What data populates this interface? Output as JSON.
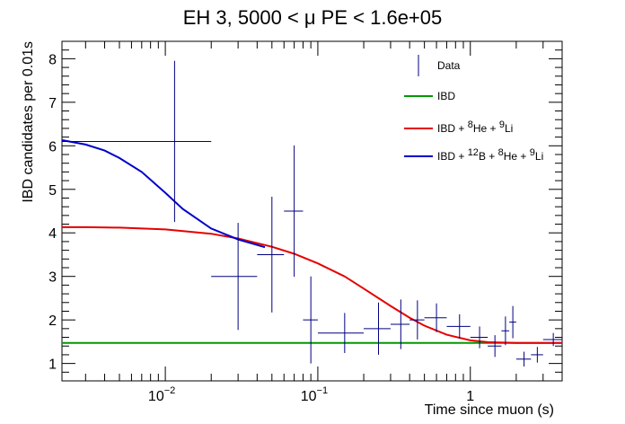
{
  "chart_data": {
    "type": "scatter",
    "title": "EH 3, 5000 < μ PE < 1.6e+05",
    "xlabel": "Time since muon (s)",
    "ylabel": "IBD candidates per 0.01s",
    "xscale": "log",
    "xlim": [
      0.0021,
      4.0
    ],
    "ylim": [
      0.6,
      8.4
    ],
    "grid": false,
    "legend_position": "top-right",
    "x_ticks": [
      {
        "base": "10",
        "exp": "−2",
        "value": 0.01
      },
      {
        "base": "10",
        "exp": "−1",
        "value": 0.1
      },
      {
        "base": "1",
        "exp": "",
        "value": 1
      }
    ],
    "y_ticks": [
      1,
      2,
      3,
      4,
      5,
      6,
      7,
      8
    ],
    "legend": [
      {
        "label": "Data",
        "color": "#00007f",
        "kind": "marker"
      },
      {
        "label": "IBD",
        "color": "#009900",
        "kind": "line"
      },
      {
        "label": "IBD + {8}He + {9}Li",
        "color": "#e60000",
        "kind": "line",
        "parts": [
          "IBD + ",
          "8",
          "He + ",
          "9",
          "Li"
        ]
      },
      {
        "label": "IBD + {12}B + {8}He + {9}Li",
        "color": "#0000cc",
        "kind": "line",
        "parts": [
          "IBD + ",
          "12",
          "B + ",
          "8",
          "He + ",
          "9",
          "Li"
        ]
      }
    ],
    "data_points": [
      {
        "x": 0.0115,
        "y": 6.1,
        "xlo": 0.0021,
        "xhi": 0.02,
        "ylo": 4.25,
        "yhi": 7.95
      },
      {
        "x": 0.03,
        "y": 3.0,
        "xlo": 0.02,
        "xhi": 0.04,
        "ylo": 1.77,
        "yhi": 4.23
      },
      {
        "x": 0.05,
        "y": 3.5,
        "xlo": 0.04,
        "xhi": 0.06,
        "ylo": 2.17,
        "yhi": 4.83
      },
      {
        "x": 0.07,
        "y": 4.5,
        "xlo": 0.06,
        "xhi": 0.08,
        "ylo": 2.99,
        "yhi": 6.01
      },
      {
        "x": 0.09,
        "y": 2.0,
        "xlo": 0.08,
        "xhi": 0.1,
        "ylo": 1.0,
        "yhi": 3.0
      },
      {
        "x": 0.15,
        "y": 1.7,
        "xlo": 0.1,
        "xhi": 0.2,
        "ylo": 1.24,
        "yhi": 2.16
      },
      {
        "x": 0.25,
        "y": 1.8,
        "xlo": 0.2,
        "xhi": 0.3,
        "ylo": 1.2,
        "yhi": 2.4
      },
      {
        "x": 0.35,
        "y": 1.9,
        "xlo": 0.3,
        "xhi": 0.4,
        "ylo": 1.33,
        "yhi": 2.47
      },
      {
        "x": 0.45,
        "y": 2.0,
        "xlo": 0.4,
        "xhi": 0.5,
        "ylo": 1.55,
        "yhi": 2.45
      },
      {
        "x": 0.6,
        "y": 2.05,
        "xlo": 0.5,
        "xhi": 0.7,
        "ylo": 1.72,
        "yhi": 2.38
      },
      {
        "x": 0.85,
        "y": 1.85,
        "xlo": 0.7,
        "xhi": 1.0,
        "ylo": 1.57,
        "yhi": 2.13
      },
      {
        "x": 1.15,
        "y": 1.6,
        "xlo": 1.0,
        "xhi": 1.3,
        "ylo": 1.35,
        "yhi": 1.85
      },
      {
        "x": 1.45,
        "y": 1.4,
        "xlo": 1.3,
        "xhi": 1.6,
        "ylo": 1.15,
        "yhi": 1.65
      },
      {
        "x": 1.7,
        "y": 1.75,
        "xlo": 1.6,
        "xhi": 1.8,
        "ylo": 1.42,
        "yhi": 2.08
      },
      {
        "x": 1.9,
        "y": 1.95,
        "xlo": 1.8,
        "xhi": 2.0,
        "ylo": 1.58,
        "yhi": 2.32
      },
      {
        "x": 2.25,
        "y": 1.1,
        "xlo": 2.0,
        "xhi": 2.5,
        "ylo": 0.93,
        "yhi": 1.27
      },
      {
        "x": 2.75,
        "y": 1.2,
        "xlo": 2.5,
        "xhi": 3.0,
        "ylo": 1.02,
        "yhi": 1.38
      },
      {
        "x": 3.5,
        "y": 1.55,
        "xlo": 3.0,
        "xhi": 4.0,
        "ylo": 1.4,
        "yhi": 1.7
      }
    ],
    "curves": [
      {
        "name": "IBD",
        "color": "#009900",
        "x": [
          0.0021,
          4.0
        ],
        "y": [
          1.47,
          1.47
        ]
      },
      {
        "name": "IBD + {8}He + {9}Li",
        "color": "#e60000",
        "x": [
          0.0021,
          0.003,
          0.005,
          0.01,
          0.02,
          0.03,
          0.05,
          0.07,
          0.1,
          0.15,
          0.2,
          0.3,
          0.4,
          0.5,
          0.7,
          1.0,
          1.3,
          2.0,
          3.0,
          4.0
        ],
        "y": [
          4.13,
          4.13,
          4.12,
          4.08,
          3.98,
          3.87,
          3.68,
          3.52,
          3.3,
          3.0,
          2.72,
          2.32,
          2.05,
          1.87,
          1.66,
          1.53,
          1.49,
          1.47,
          1.47,
          1.47
        ]
      },
      {
        "name": "IBD + {12}B + {8}He + {9}Li",
        "color": "#0000cc",
        "x": [
          0.0021,
          0.003,
          0.004,
          0.005,
          0.007,
          0.01,
          0.013,
          0.02,
          0.03,
          0.045
        ],
        "y": [
          6.13,
          6.03,
          5.89,
          5.72,
          5.4,
          4.92,
          4.55,
          4.1,
          3.85,
          3.67
        ]
      }
    ]
  }
}
